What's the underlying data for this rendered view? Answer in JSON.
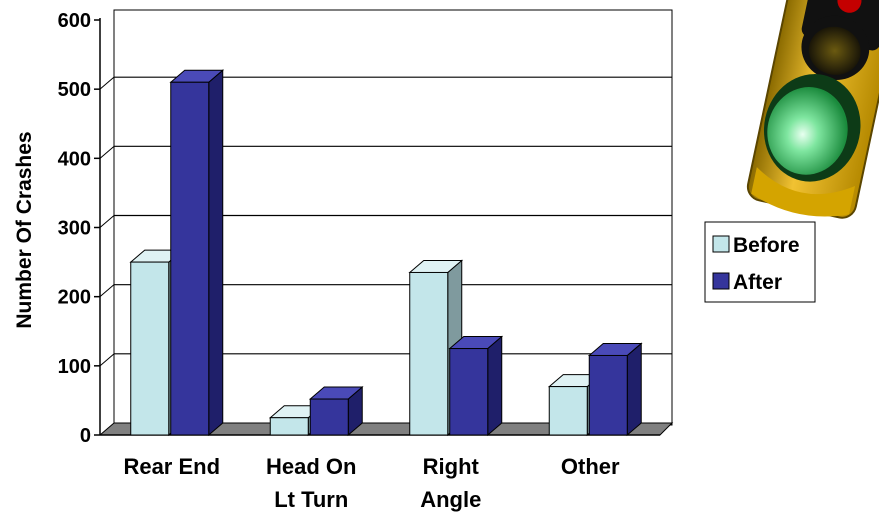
{
  "chart_data": {
    "type": "bar",
    "title": "",
    "xlabel": "",
    "ylabel": "Number Of Crashes",
    "ylim": [
      0,
      600
    ],
    "yticks": [
      0,
      100,
      200,
      300,
      400,
      500,
      600
    ],
    "grid": true,
    "three_d": true,
    "legend_position": "right",
    "categories": [
      [
        "Rear End"
      ],
      [
        "Head On",
        "Lt Turn"
      ],
      [
        "Right",
        "Angle"
      ],
      [
        "Other"
      ]
    ],
    "series": [
      {
        "name": "Before",
        "values": [
          250,
          25,
          235,
          70
        ],
        "color": "#c3e6ea"
      },
      {
        "name": "After",
        "values": [
          510,
          52,
          125,
          115
        ],
        "color": "#35359c"
      }
    ]
  },
  "decoration": {
    "image": "traffic-light-icon"
  }
}
